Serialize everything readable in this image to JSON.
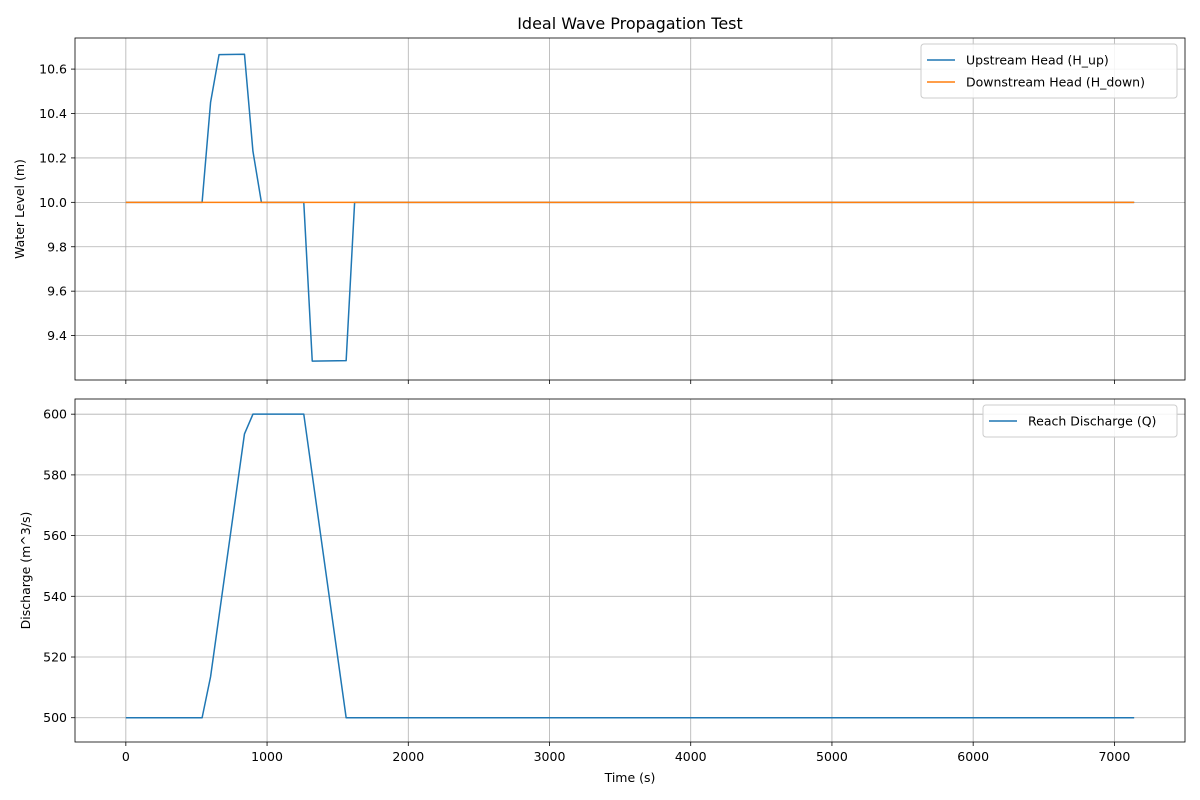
{
  "figure": {
    "title": "Ideal Wave Propagation Test",
    "xlabel": "Time (s)"
  },
  "chart_data": [
    {
      "type": "line",
      "title": "Ideal Wave Propagation Test",
      "xlabel": "",
      "ylabel": "Water Level (m)",
      "xlim": [
        -360,
        7500
      ],
      "ylim": [
        9.2,
        10.74
      ],
      "xticks": [
        0,
        1000,
        2000,
        3000,
        4000,
        5000,
        6000,
        7000
      ],
      "xtick_labels_visible": false,
      "yticks": [
        9.4,
        9.6,
        9.8,
        10.0,
        10.2,
        10.4,
        10.6
      ],
      "ytick_labels": [
        "9.4",
        "9.6",
        "9.8",
        "10.0",
        "10.2",
        "10.4",
        "10.6"
      ],
      "grid": true,
      "legend_position": "top-right",
      "series": [
        {
          "name": "Upstream Head (H_up)",
          "color": "#1f77b4",
          "x": [
            0,
            540,
            600,
            660,
            840,
            900,
            960,
            1260,
            1320,
            1560,
            1620,
            7140
          ],
          "y": [
            10.0,
            10.0,
            10.45,
            10.665,
            10.667,
            10.23,
            10.0,
            10.0,
            9.285,
            9.287,
            10.0,
            10.0
          ]
        },
        {
          "name": "Downstream Head (H_down)",
          "color": "#ff7f0e",
          "x": [
            0,
            7140
          ],
          "y": [
            10.0,
            10.0
          ]
        }
      ]
    },
    {
      "type": "line",
      "title": "",
      "xlabel": "Time (s)",
      "ylabel": "Discharge (m^3/s)",
      "xlim": [
        -360,
        7500
      ],
      "ylim": [
        492,
        605
      ],
      "xticks": [
        0,
        1000,
        2000,
        3000,
        4000,
        5000,
        6000,
        7000
      ],
      "xtick_labels": [
        "0",
        "1000",
        "2000",
        "3000",
        "4000",
        "5000",
        "6000",
        "7000"
      ],
      "yticks": [
        500,
        520,
        540,
        560,
        580,
        600
      ],
      "ytick_labels": [
        "500",
        "520",
        "540",
        "560",
        "580",
        "600"
      ],
      "grid": true,
      "legend_position": "top-right",
      "series": [
        {
          "name": "Reach Discharge (Q)",
          "color": "#1f77b4",
          "x": [
            0,
            540,
            600,
            840,
            900,
            1260,
            1560,
            7140
          ],
          "y": [
            500,
            500,
            513.5,
            593.5,
            600,
            600,
            500,
            500
          ]
        }
      ]
    }
  ]
}
